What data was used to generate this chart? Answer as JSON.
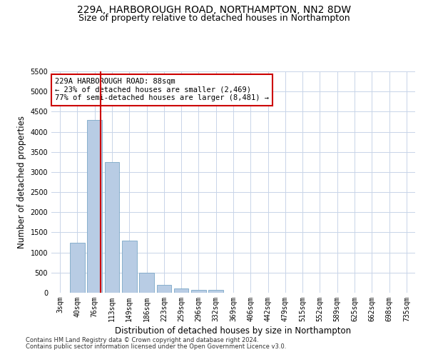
{
  "title1": "229A, HARBOROUGH ROAD, NORTHAMPTON, NN2 8DW",
  "title2": "Size of property relative to detached houses in Northampton",
  "xlabel": "Distribution of detached houses by size in Northampton",
  "ylabel": "Number of detached properties",
  "categories": [
    "3sqm",
    "40sqm",
    "76sqm",
    "113sqm",
    "149sqm",
    "186sqm",
    "223sqm",
    "259sqm",
    "296sqm",
    "332sqm",
    "369sqm",
    "406sqm",
    "442sqm",
    "479sqm",
    "515sqm",
    "552sqm",
    "589sqm",
    "625sqm",
    "662sqm",
    "698sqm",
    "735sqm"
  ],
  "values": [
    0,
    1250,
    4300,
    3250,
    1300,
    500,
    200,
    100,
    75,
    75,
    0,
    0,
    0,
    0,
    0,
    0,
    0,
    0,
    0,
    0,
    0
  ],
  "bar_color": "#b8cce4",
  "bar_edge_color": "#7ba7c7",
  "annotation_text_line1": "229A HARBOROUGH ROAD: 88sqm",
  "annotation_text_line2": "← 23% of detached houses are smaller (2,469)",
  "annotation_text_line3": "77% of semi-detached houses are larger (8,481) →",
  "annotation_box_color": "#ffffff",
  "annotation_box_edge": "#cc0000",
  "ylim": [
    0,
    5500
  ],
  "yticks": [
    0,
    500,
    1000,
    1500,
    2000,
    2500,
    3000,
    3500,
    4000,
    4500,
    5000,
    5500
  ],
  "footer1": "Contains HM Land Registry data © Crown copyright and database right 2024.",
  "footer2": "Contains public sector information licensed under the Open Government Licence v3.0.",
  "bg_color": "#ffffff",
  "grid_color": "#c8d4e8",
  "title_fontsize": 10,
  "subtitle_fontsize": 9,
  "tick_fontsize": 7,
  "label_fontsize": 8.5,
  "footer_fontsize": 6
}
